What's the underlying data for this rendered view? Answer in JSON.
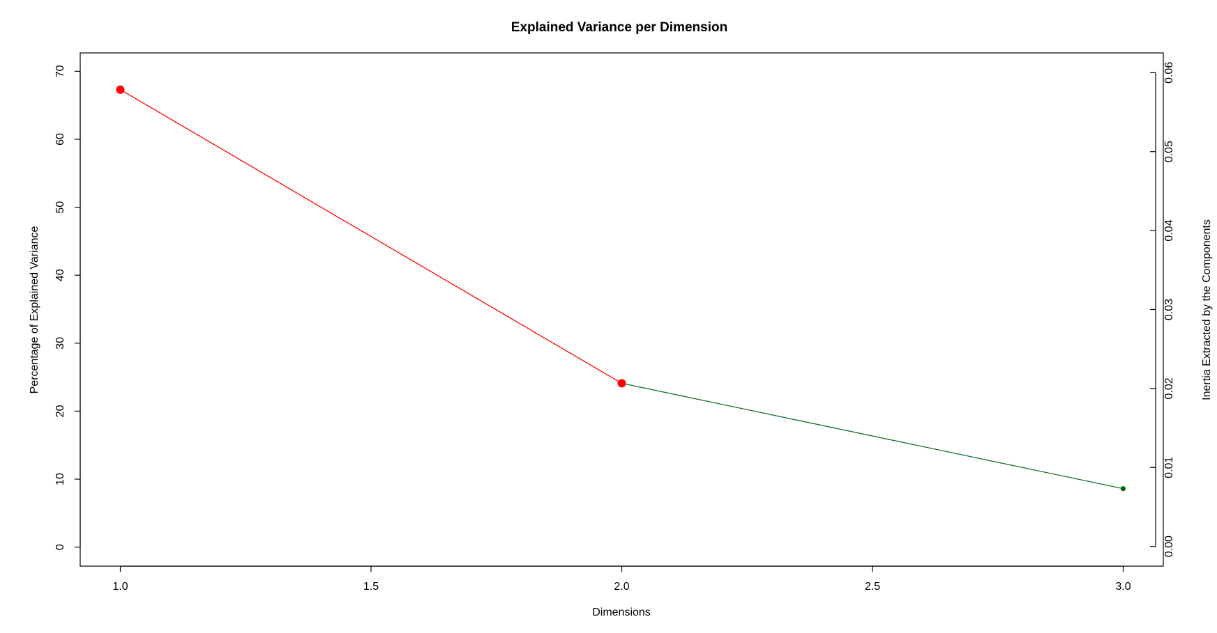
{
  "chart_data": {
    "type": "line",
    "title": "Explained Variance per Dimension",
    "xlabel": "Dimensions",
    "ylabel": "Percentage of Explained Variance",
    "y2label": "Inertia Extracted by the Components",
    "xlim": [
      0.92,
      3.08
    ],
    "ylim": [
      -2.8,
      72.7
    ],
    "y2lim": [
      -0.0025,
      0.0625
    ],
    "grid": false,
    "x_ticks": [
      "1.0",
      "1.5",
      "2.0",
      "2.5",
      "3.0"
    ],
    "y_ticks": [
      "0",
      "10",
      "20",
      "30",
      "40",
      "50",
      "60",
      "70"
    ],
    "y2_ticks": [
      "0.00",
      "0.01",
      "0.02",
      "0.03",
      "0.04",
      "0.05",
      "0.06"
    ],
    "x": [
      1,
      2,
      3
    ],
    "y": [
      67.3,
      24.1,
      8.6
    ],
    "segment_colors": [
      "#ff0000",
      "#1a6b2e"
    ],
    "point_colors": [
      "#ff0000",
      "#ff0000",
      "#006400"
    ],
    "point_sizes": [
      "large",
      "large",
      "small"
    ]
  }
}
